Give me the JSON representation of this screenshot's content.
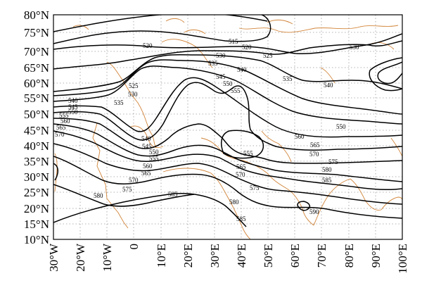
{
  "map": {
    "x_ticks": [
      "30°W",
      "20°W",
      "10°W",
      "0",
      "10°E",
      "20°E",
      "30°E",
      "40°E",
      "50°E",
      "60°E",
      "70°E",
      "80°E",
      "90°E",
      "100°E"
    ],
    "y_ticks": [
      "80°N",
      "75°N",
      "70°N",
      "65°N",
      "60°N",
      "55°N",
      "50°N",
      "45°N",
      "40°N",
      "35°N",
      "30°N",
      "25°N",
      "20°N",
      "15°N",
      "10°N"
    ],
    "contour_labels": [
      "515",
      "520",
      "520",
      "525",
      "525",
      "530",
      "530",
      "530",
      "535",
      "535",
      "535",
      "540",
      "540",
      "540",
      "540",
      "545",
      "545",
      "545",
      "550",
      "550",
      "550",
      "550",
      "555",
      "555",
      "555",
      "555",
      "560",
      "560",
      "560",
      "565",
      "565",
      "565",
      "565",
      "570",
      "570",
      "570",
      "570",
      "575",
      "575",
      "575",
      "580",
      "580",
      "580",
      "585",
      "585",
      "585",
      "590"
    ],
    "colors": {
      "contour": "#000000",
      "coastline": "#d2853a",
      "grid": "#9a9a9a"
    }
  }
}
